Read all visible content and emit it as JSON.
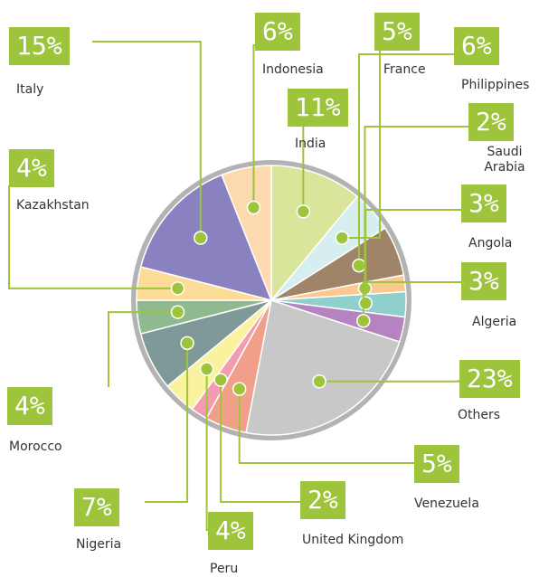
{
  "chart_data": {
    "type": "pie",
    "categories": [
      "India",
      "France",
      "Philippines",
      "Saudi Arabia",
      "Angola",
      "Algeria",
      "Others",
      "Venezuela",
      "United Kingdom",
      "Peru",
      "Nigeria",
      "Morocco",
      "Kazakhstan",
      "Italy",
      "Indonesia"
    ],
    "values": [
      11,
      5,
      6,
      2,
      3,
      3,
      23,
      5,
      2,
      4,
      7,
      4,
      4,
      15,
      6
    ],
    "value_labels": [
      "11%",
      "5%",
      "6%",
      "2%",
      "3%",
      "3%",
      "23%",
      "5%",
      "2%",
      "4%",
      "7%",
      "4%",
      "4%",
      "15%",
      "6%"
    ],
    "colors": [
      "#d9e59a",
      "#d6eef0",
      "#a08468",
      "#fbc98f",
      "#8fcfcc",
      "#b583c0",
      "#c8c8c8",
      "#f0a08a",
      "#f59bb0",
      "#fbf2a0",
      "#7f9898",
      "#8fba8f",
      "#fddc98",
      "#8a82c0",
      "#fdd9b0"
    ]
  }
}
